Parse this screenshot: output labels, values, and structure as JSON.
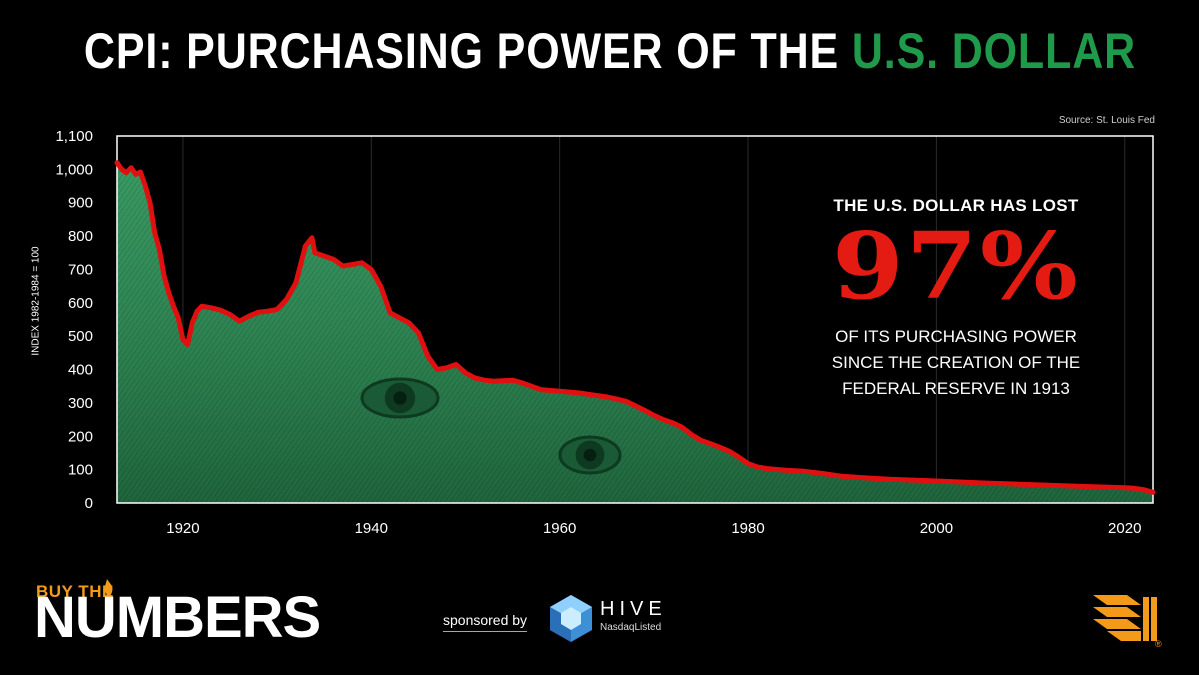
{
  "header": {
    "title_main": "CPI: PURCHASING POWER OF THE ",
    "title_accent": "U.S. DOLLAR",
    "source": "Source: St. Louis Fed"
  },
  "chart_data": {
    "type": "area",
    "ylabel": "INDEX 1982-1984 = 100",
    "xlabel": "",
    "xlim": [
      1913,
      2023
    ],
    "ylim": [
      0,
      1100
    ],
    "yticks": [
      0,
      100,
      200,
      300,
      400,
      500,
      600,
      700,
      800,
      900,
      1000,
      1100
    ],
    "ytick_labels": [
      "0",
      "100",
      "200",
      "300",
      "400",
      "500",
      "600",
      "700",
      "800",
      "900",
      "1,000",
      "1,100"
    ],
    "xticks": [
      1920,
      1940,
      1960,
      1980,
      2000,
      2020
    ],
    "xtick_labels": [
      "1920",
      "1940",
      "1960",
      "1980",
      "2000",
      "2020"
    ],
    "grid": "vertical",
    "line_color": "#e01010",
    "fill_color": "#2f8a55",
    "series": [
      {
        "x": [
          1913,
          1913.5,
          1914,
          1914.5,
          1915,
          1915.5,
          1916,
          1916.5,
          1917,
          1917.5,
          1918,
          1918.5,
          1919,
          1919.5,
          1920,
          1920.5,
          1921,
          1921.5,
          1922,
          1923,
          1924,
          1925,
          1926,
          1927,
          1928,
          1929,
          1930,
          1931,
          1932,
          1933,
          1933.7,
          1934,
          1935,
          1936,
          1937,
          1938,
          1939,
          1940,
          1941,
          1942,
          1943,
          1944,
          1945,
          1946,
          1947,
          1948,
          1949,
          1950,
          1951,
          1952,
          1953,
          1955,
          1956,
          1957,
          1958,
          1960,
          1962,
          1964,
          1965,
          1966,
          1967,
          1968,
          1969,
          1970,
          1971,
          1972,
          1973,
          1974,
          1975,
          1976,
          1977,
          1978,
          1979,
          1980,
          1981,
          1982,
          1984,
          1986,
          1988,
          1990,
          1992,
          1995,
          2000,
          2005,
          2010,
          2015,
          2020,
          2021,
          2022,
          2023
        ],
        "values": [
          1020,
          1000,
          990,
          1005,
          985,
          992,
          950,
          900,
          810,
          760,
          680,
          630,
          590,
          555,
          490,
          475,
          540,
          575,
          590,
          585,
          578,
          565,
          545,
          560,
          572,
          575,
          580,
          610,
          660,
          770,
          795,
          750,
          740,
          730,
          710,
          715,
          720,
          700,
          650,
          570,
          555,
          540,
          510,
          440,
          400,
          405,
          415,
          390,
          375,
          368,
          365,
          368,
          360,
          350,
          340,
          335,
          330,
          322,
          318,
          312,
          305,
          292,
          278,
          263,
          250,
          240,
          227,
          205,
          188,
          178,
          167,
          155,
          138,
          118,
          108,
          103,
          98,
          95,
          88,
          80,
          76,
          71,
          66,
          60,
          55,
          50,
          46,
          44,
          40,
          32
        ]
      }
    ]
  },
  "callout": {
    "lead": "THE U.S. DOLLAR HAS LOST",
    "figure": "97%",
    "line1": "OF ITS PURCHASING POWER",
    "line2": "SINCE THE CREATION OF THE",
    "line3": "FEDERAL RESERVE IN 1913"
  },
  "footer": {
    "brand_top": "BUY THE",
    "brand_main": "NUMBERS",
    "sponsored_by": "sponsored by",
    "sponsor_name": "HIVE",
    "sponsor_sub": "NasdaqListed"
  }
}
